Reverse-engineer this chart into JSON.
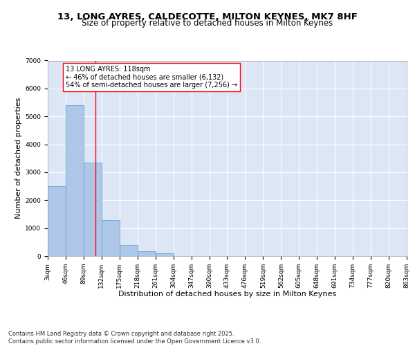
{
  "title_line1": "13, LONG AYRES, CALDECOTTE, MILTON KEYNES, MK7 8HF",
  "title_line2": "Size of property relative to detached houses in Milton Keynes",
  "xlabel": "Distribution of detached houses by size in Milton Keynes",
  "ylabel": "Number of detached properties",
  "bar_color": "#aec6e8",
  "bar_edge_color": "#5b9bd5",
  "background_color": "#dce6f5",
  "vline_x": 118,
  "vline_color": "red",
  "annotation_text": "13 LONG AYRES: 118sqm\n← 46% of detached houses are smaller (6,132)\n54% of semi-detached houses are larger (7,256) →",
  "annotation_box_color": "white",
  "annotation_box_edge": "red",
  "bins_left": [
    3,
    46,
    89,
    132,
    175,
    218,
    261,
    304,
    347,
    390,
    433,
    476,
    519,
    562,
    605,
    648,
    691,
    734,
    777,
    820
  ],
  "bin_width": 43,
  "bar_heights": [
    2500,
    5400,
    3350,
    1300,
    400,
    180,
    90,
    0,
    0,
    0,
    0,
    0,
    0,
    0,
    0,
    0,
    0,
    0,
    0,
    0
  ],
  "xlim_left": 3,
  "xlim_right": 863,
  "ylim_top": 7000,
  "ylim_bottom": 0,
  "yticks": [
    0,
    1000,
    2000,
    3000,
    4000,
    5000,
    6000,
    7000
  ],
  "xtick_labels": [
    "3sqm",
    "46sqm",
    "89sqm",
    "132sqm",
    "175sqm",
    "218sqm",
    "261sqm",
    "304sqm",
    "347sqm",
    "390sqm",
    "433sqm",
    "476sqm",
    "519sqm",
    "562sqm",
    "605sqm",
    "648sqm",
    "691sqm",
    "734sqm",
    "777sqm",
    "820sqm",
    "863sqm"
  ],
  "xtick_positions": [
    3,
    46,
    89,
    132,
    175,
    218,
    261,
    304,
    347,
    390,
    433,
    476,
    519,
    562,
    605,
    648,
    691,
    734,
    777,
    820,
    863
  ],
  "footer_text": "Contains HM Land Registry data © Crown copyright and database right 2025.\nContains public sector information licensed under the Open Government Licence v3.0.",
  "grid_color": "white",
  "title_fontsize": 9.5,
  "subtitle_fontsize": 8.5,
  "axis_label_fontsize": 8,
  "tick_fontsize": 6.5,
  "footer_fontsize": 6,
  "annot_fontsize": 7
}
